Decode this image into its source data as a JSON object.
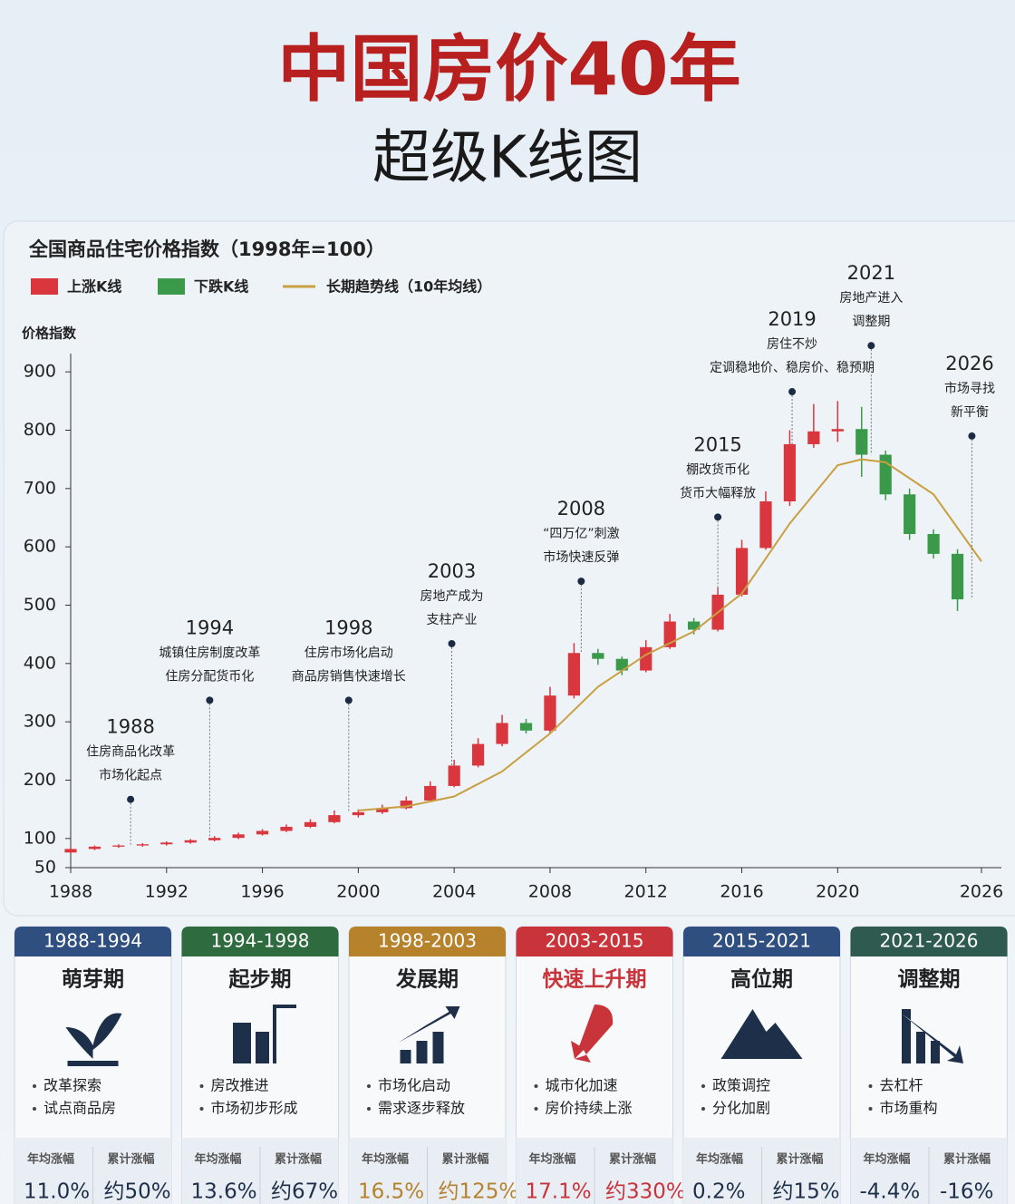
{
  "header": {
    "title": "中国房价40年",
    "subtitle": "超级K线图"
  },
  "chart_data": {
    "type": "candlestick",
    "title": "全国商品住宅价格指数（1998年=100）",
    "y_label": "价格指数",
    "up_name": "上涨K线",
    "up_color": "#d9363e",
    "down_name": "下跌K线",
    "down_color": "#3a9a4a",
    "x": [
      1988,
      1989,
      1990,
      1991,
      1992,
      1993,
      1994,
      1995,
      1996,
      1997,
      1998,
      1999,
      2000,
      2001,
      2002,
      2003,
      2004,
      2005,
      2006,
      2007,
      2008,
      2009,
      2010,
      2011,
      2012,
      2013,
      2014,
      2015,
      2016,
      2017,
      2018,
      2019,
      2020,
      2021,
      2022,
      2023,
      2024,
      2025
    ],
    "open": [
      76,
      82,
      86,
      88,
      90,
      93,
      97,
      101,
      107,
      113,
      120,
      128,
      140,
      145,
      152,
      165,
      190,
      225,
      262,
      298,
      285,
      345,
      418,
      408,
      388,
      428,
      472,
      458,
      518,
      598,
      678,
      776,
      798,
      802,
      758,
      690,
      622,
      588
    ],
    "high": [
      84,
      88,
      90,
      92,
      95,
      99,
      104,
      110,
      116,
      124,
      133,
      148,
      150,
      158,
      172,
      198,
      235,
      272,
      312,
      305,
      360,
      435,
      425,
      412,
      440,
      485,
      478,
      530,
      612,
      695,
      800,
      845,
      850,
      840,
      765,
      700,
      630,
      596
    ],
    "low": [
      74,
      80,
      84,
      86,
      88,
      91,
      95,
      99,
      105,
      111,
      118,
      126,
      136,
      142,
      150,
      163,
      188,
      222,
      258,
      280,
      280,
      340,
      398,
      380,
      385,
      425,
      450,
      455,
      515,
      595,
      670,
      770,
      780,
      720,
      680,
      612,
      580,
      490
    ],
    "close": [
      82,
      86,
      88,
      90,
      93,
      97,
      101,
      107,
      113,
      120,
      128,
      140,
      145,
      152,
      165,
      190,
      225,
      262,
      298,
      285,
      345,
      418,
      408,
      388,
      428,
      472,
      458,
      518,
      598,
      678,
      776,
      798,
      802,
      758,
      690,
      622,
      588,
      510
    ],
    "trend": {
      "name": "长期趋势线（10年均线）",
      "color": "#c9a040",
      "x": [
        2000,
        2002,
        2004,
        2006,
        2008,
        2010,
        2012,
        2014,
        2016,
        2018,
        2020,
        2021,
        2022,
        2024,
        2026
      ],
      "values": [
        148,
        155,
        172,
        215,
        280,
        360,
        415,
        455,
        520,
        640,
        740,
        750,
        745,
        690,
        575
      ]
    },
    "xlim": [
      1988,
      2026
    ],
    "xticks": [
      1988,
      1992,
      1996,
      2000,
      2004,
      2008,
      2012,
      2016,
      2020,
      2026
    ],
    "ylim": [
      50,
      950
    ],
    "yticks": [
      50,
      100,
      200,
      300,
      400,
      500,
      600,
      700,
      800,
      900
    ],
    "annotations": [
      {
        "year": "1988",
        "lines": [
          "住房商品化改革",
          "市场化起点"
        ],
        "x": 1990.5,
        "y": 167
      },
      {
        "year": "1994",
        "lines": [
          "城镇住房制度改革",
          "住房分配货币化"
        ],
        "x": 1993.8,
        "y": 337
      },
      {
        "year": "1998",
        "lines": [
          "住房市场化启动",
          "商品房销售快速增长"
        ],
        "x": 1999.6,
        "y": 337
      },
      {
        "year": "2003",
        "lines": [
          "房地产成为",
          "支柱产业"
        ],
        "x": 2003.9,
        "y": 434
      },
      {
        "year": "2008",
        "lines": [
          "“四万亿”刺激",
          "市场快速反弹"
        ],
        "x": 2009.3,
        "y": 541
      },
      {
        "year": "2015",
        "lines": [
          "棚改货币化",
          "货币大幅释放"
        ],
        "x": 2015.0,
        "y": 651
      },
      {
        "year": "2019",
        "lines": [
          "房住不炒",
          "定调稳地价、稳房价、稳预期"
        ],
        "x": 2018.1,
        "y": 866
      },
      {
        "year": "2021",
        "lines": [
          "房地产进入",
          "调整期"
        ],
        "x": 2021.4,
        "y": 945
      },
      {
        "year": "2026",
        "lines": [
          "市场寻找",
          "新平衡"
        ],
        "x": 2025.6,
        "y": 790
      }
    ]
  },
  "phases": [
    {
      "range": "1988-1994",
      "name": "萌芽期",
      "color": "#2f4f80",
      "bullets": [
        "改革探索",
        "试点商品房"
      ],
      "stat_labels": [
        "年均涨幅",
        "累计涨幅"
      ],
      "stats": [
        "11.0%",
        "约50%"
      ]
    },
    {
      "range": "1994-1998",
      "name": "起步期",
      "color": "#2e6b3e",
      "bullets": [
        "房改推进",
        "市场初步形成"
      ],
      "stat_labels": [
        "年均涨幅",
        "累计涨幅"
      ],
      "stats": [
        "13.6%",
        "约67%"
      ]
    },
    {
      "range": "1998-2003",
      "name": "发展期",
      "color": "#b7822c",
      "bullets": [
        "市场化启动",
        "需求逐步释放"
      ],
      "stat_labels": [
        "年均涨幅",
        "累计涨幅"
      ],
      "stats": [
        "16.5%",
        "约125%"
      ]
    },
    {
      "range": "2003-2015",
      "name": "快速上升期",
      "color": "#c9333a",
      "bullets": [
        "城市化加速",
        "房价持续上涨"
      ],
      "stat_labels": [
        "年均涨幅",
        "累计涨幅"
      ],
      "stats": [
        "17.1%",
        "约330%"
      ]
    },
    {
      "range": "2015-2021",
      "name": "高位期",
      "color": "#2f4f80",
      "bullets": [
        "政策调控",
        "分化加剧"
      ],
      "stat_labels": [
        "年均涨幅",
        "累计涨幅"
      ],
      "stats": [
        "0.2%",
        "约15%"
      ]
    },
    {
      "range": "2021-2026",
      "name": "调整期",
      "color": "#2e5a50",
      "bullets": [
        "去杠杆",
        "市场重构"
      ],
      "stat_labels": [
        "年均涨幅",
        "累计涨幅"
      ],
      "stats": [
        "-4.4%",
        "-16%"
      ]
    }
  ]
}
